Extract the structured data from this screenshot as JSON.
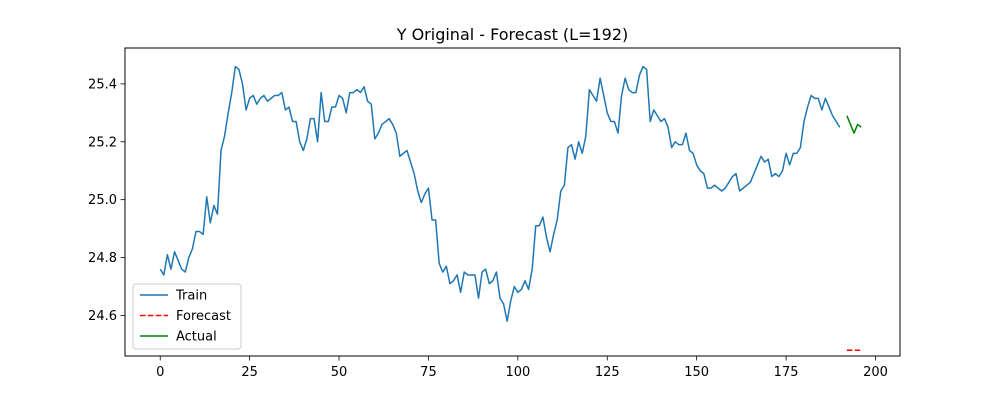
{
  "chart_data": {
    "type": "line",
    "title": "Y Original - Forecast (L=192)",
    "xlabel": "",
    "ylabel": "",
    "xlim": [
      -9.85,
      206.85
    ],
    "ylim": [
      24.46,
      25.524
    ],
    "x_ticks": [
      0,
      25,
      50,
      75,
      100,
      125,
      150,
      175,
      200
    ],
    "y_ticks": [
      24.6,
      24.8,
      25.0,
      25.2,
      25.4
    ],
    "x_tick_labels": [
      "0",
      "25",
      "50",
      "75",
      "100",
      "125",
      "150",
      "175",
      "200"
    ],
    "y_tick_labels": [
      "24.6",
      "24.8",
      "25.0",
      "25.2",
      "25.4"
    ],
    "grid": false,
    "legend_position": "lower-left",
    "series": [
      {
        "name": "Train",
        "color": "#1f77b4",
        "style": "solid",
        "x_start": 0,
        "values": [
          24.76,
          24.74,
          24.81,
          24.76,
          24.82,
          24.79,
          24.76,
          24.75,
          24.8,
          24.83,
          24.89,
          24.89,
          24.88,
          25.01,
          24.92,
          24.98,
          24.95,
          25.17,
          25.22,
          25.3,
          25.37,
          25.46,
          25.45,
          25.4,
          25.31,
          25.35,
          25.36,
          25.33,
          25.35,
          25.36,
          25.34,
          25.35,
          25.36,
          25.36,
          25.37,
          25.31,
          25.32,
          25.27,
          25.27,
          25.2,
          25.17,
          25.21,
          25.28,
          25.28,
          25.2,
          25.37,
          25.27,
          25.27,
          25.32,
          25.32,
          25.36,
          25.35,
          25.3,
          25.37,
          25.37,
          25.38,
          25.37,
          25.39,
          25.34,
          25.33,
          25.21,
          25.23,
          25.26,
          25.27,
          25.28,
          25.26,
          25.23,
          25.15,
          25.16,
          25.17,
          25.13,
          25.09,
          25.03,
          24.99,
          25.02,
          25.04,
          24.93,
          24.93,
          24.78,
          24.75,
          24.77,
          24.71,
          24.72,
          24.74,
          24.68,
          24.75,
          24.74,
          24.74,
          24.74,
          24.66,
          24.75,
          24.76,
          24.71,
          24.72,
          24.75,
          24.66,
          24.64,
          24.58,
          24.65,
          24.7,
          24.68,
          24.69,
          24.72,
          24.69,
          24.76,
          24.91,
          24.91,
          24.94,
          24.87,
          24.82,
          24.88,
          24.93,
          25.03,
          25.05,
          25.18,
          25.19,
          25.14,
          25.2,
          25.16,
          25.22,
          25.38,
          25.36,
          25.34,
          25.42,
          25.36,
          25.3,
          25.27,
          25.27,
          25.23,
          25.36,
          25.42,
          25.38,
          25.37,
          25.37,
          25.43,
          25.46,
          25.45,
          25.27,
          25.31,
          25.29,
          25.27,
          25.28,
          25.25,
          25.18,
          25.2,
          25.19,
          25.19,
          25.23,
          25.17,
          25.16,
          25.12,
          25.1,
          25.09,
          25.04,
          25.04,
          25.05,
          25.04,
          25.03,
          25.04,
          25.06,
          25.08,
          25.09,
          25.03,
          25.04,
          25.05,
          25.06,
          25.09,
          25.12,
          25.15,
          25.13,
          25.14,
          25.08,
          25.09,
          25.08,
          25.1,
          25.16,
          25.12,
          25.16,
          25.16,
          25.18,
          25.27,
          25.32,
          25.36,
          25.35,
          25.35,
          25.31,
          25.35,
          25.32,
          25.29,
          25.27,
          25.25
        ]
      },
      {
        "name": "Forecast",
        "color": "#ff0000",
        "style": "dashed",
        "x": [
          192,
          193,
          194,
          195,
          196
        ],
        "values": [
          24.48,
          24.48,
          24.48,
          24.48,
          24.48
        ]
      },
      {
        "name": "Actual",
        "color": "#008000",
        "style": "solid",
        "x": [
          192,
          193,
          194,
          195,
          196
        ],
        "values": [
          25.29,
          25.26,
          25.23,
          25.26,
          25.25
        ]
      }
    ]
  }
}
